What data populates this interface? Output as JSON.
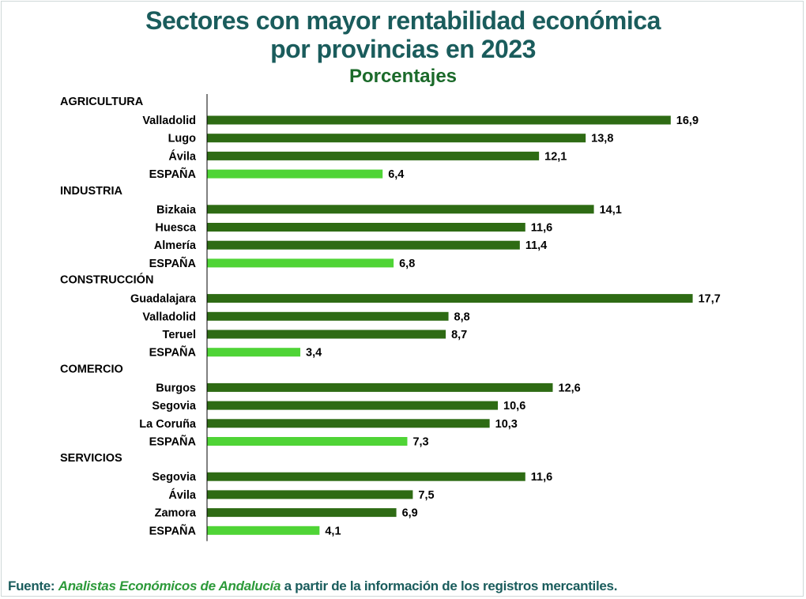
{
  "header": {
    "title_line_1": "Sectores con mayor rentabilidad económica",
    "title_line_2": "por provincias en 2023",
    "subtitle": "Porcentajes"
  },
  "footer": {
    "source_label": "Fuente:",
    "source_org": "Analistas Económicos de Andalucía",
    "source_rest": "a partir de la información de los registros mercantiles."
  },
  "colors": {
    "province_bar": "#2e6b14",
    "spain_bar": "#4fd436",
    "title": "#1a5c5c"
  },
  "chart_data": {
    "type": "bar",
    "orientation": "horizontal",
    "title": "Sectores con mayor rentabilidad económica por provincias en 2023",
    "subtitle": "Porcentajes",
    "xlim": [
      0,
      18
    ],
    "grid": false,
    "legend": "none",
    "groups": [
      {
        "sector": "AGRICULTURA",
        "items": [
          {
            "label": "Valladolid",
            "value": 16.9,
            "display": "16,9",
            "is_spain": false
          },
          {
            "label": "Lugo",
            "value": 13.8,
            "display": "13,8",
            "is_spain": false
          },
          {
            "label": "Ávila",
            "value": 12.1,
            "display": "12,1",
            "is_spain": false
          },
          {
            "label": "ESPAÑA",
            "value": 6.4,
            "display": "6,4",
            "is_spain": true
          }
        ]
      },
      {
        "sector": "INDUSTRIA",
        "items": [
          {
            "label": "Bizkaia",
            "value": 14.1,
            "display": "14,1",
            "is_spain": false
          },
          {
            "label": "Huesca",
            "value": 11.6,
            "display": "11,6",
            "is_spain": false
          },
          {
            "label": "Almería",
            "value": 11.4,
            "display": "11,4",
            "is_spain": false
          },
          {
            "label": "ESPAÑA",
            "value": 6.8,
            "display": "6,8",
            "is_spain": true
          }
        ]
      },
      {
        "sector": "CONSTRUCCIÓN",
        "items": [
          {
            "label": "Guadalajara",
            "value": 17.7,
            "display": "17,7",
            "is_spain": false
          },
          {
            "label": "Valladolid",
            "value": 8.8,
            "display": "8,8",
            "is_spain": false
          },
          {
            "label": "Teruel",
            "value": 8.7,
            "display": "8,7",
            "is_spain": false
          },
          {
            "label": "ESPAÑA",
            "value": 3.4,
            "display": "3,4",
            "is_spain": true
          }
        ]
      },
      {
        "sector": "COMERCIO",
        "items": [
          {
            "label": "Burgos",
            "value": 12.6,
            "display": "12,6",
            "is_spain": false
          },
          {
            "label": "Segovia",
            "value": 10.6,
            "display": "10,6",
            "is_spain": false
          },
          {
            "label": "La Coruña",
            "value": 10.3,
            "display": "10,3",
            "is_spain": false
          },
          {
            "label": "ESPAÑA",
            "value": 7.3,
            "display": "7,3",
            "is_spain": true
          }
        ]
      },
      {
        "sector": "SERVICIOS",
        "items": [
          {
            "label": "Segovia",
            "value": 11.6,
            "display": "11,6",
            "is_spain": false
          },
          {
            "label": "Ávila",
            "value": 7.5,
            "display": "7,5",
            "is_spain": false
          },
          {
            "label": "Zamora",
            "value": 6.9,
            "display": "6,9",
            "is_spain": false
          },
          {
            "label": "ESPAÑA",
            "value": 4.1,
            "display": "4,1",
            "is_spain": true
          }
        ]
      }
    ]
  }
}
